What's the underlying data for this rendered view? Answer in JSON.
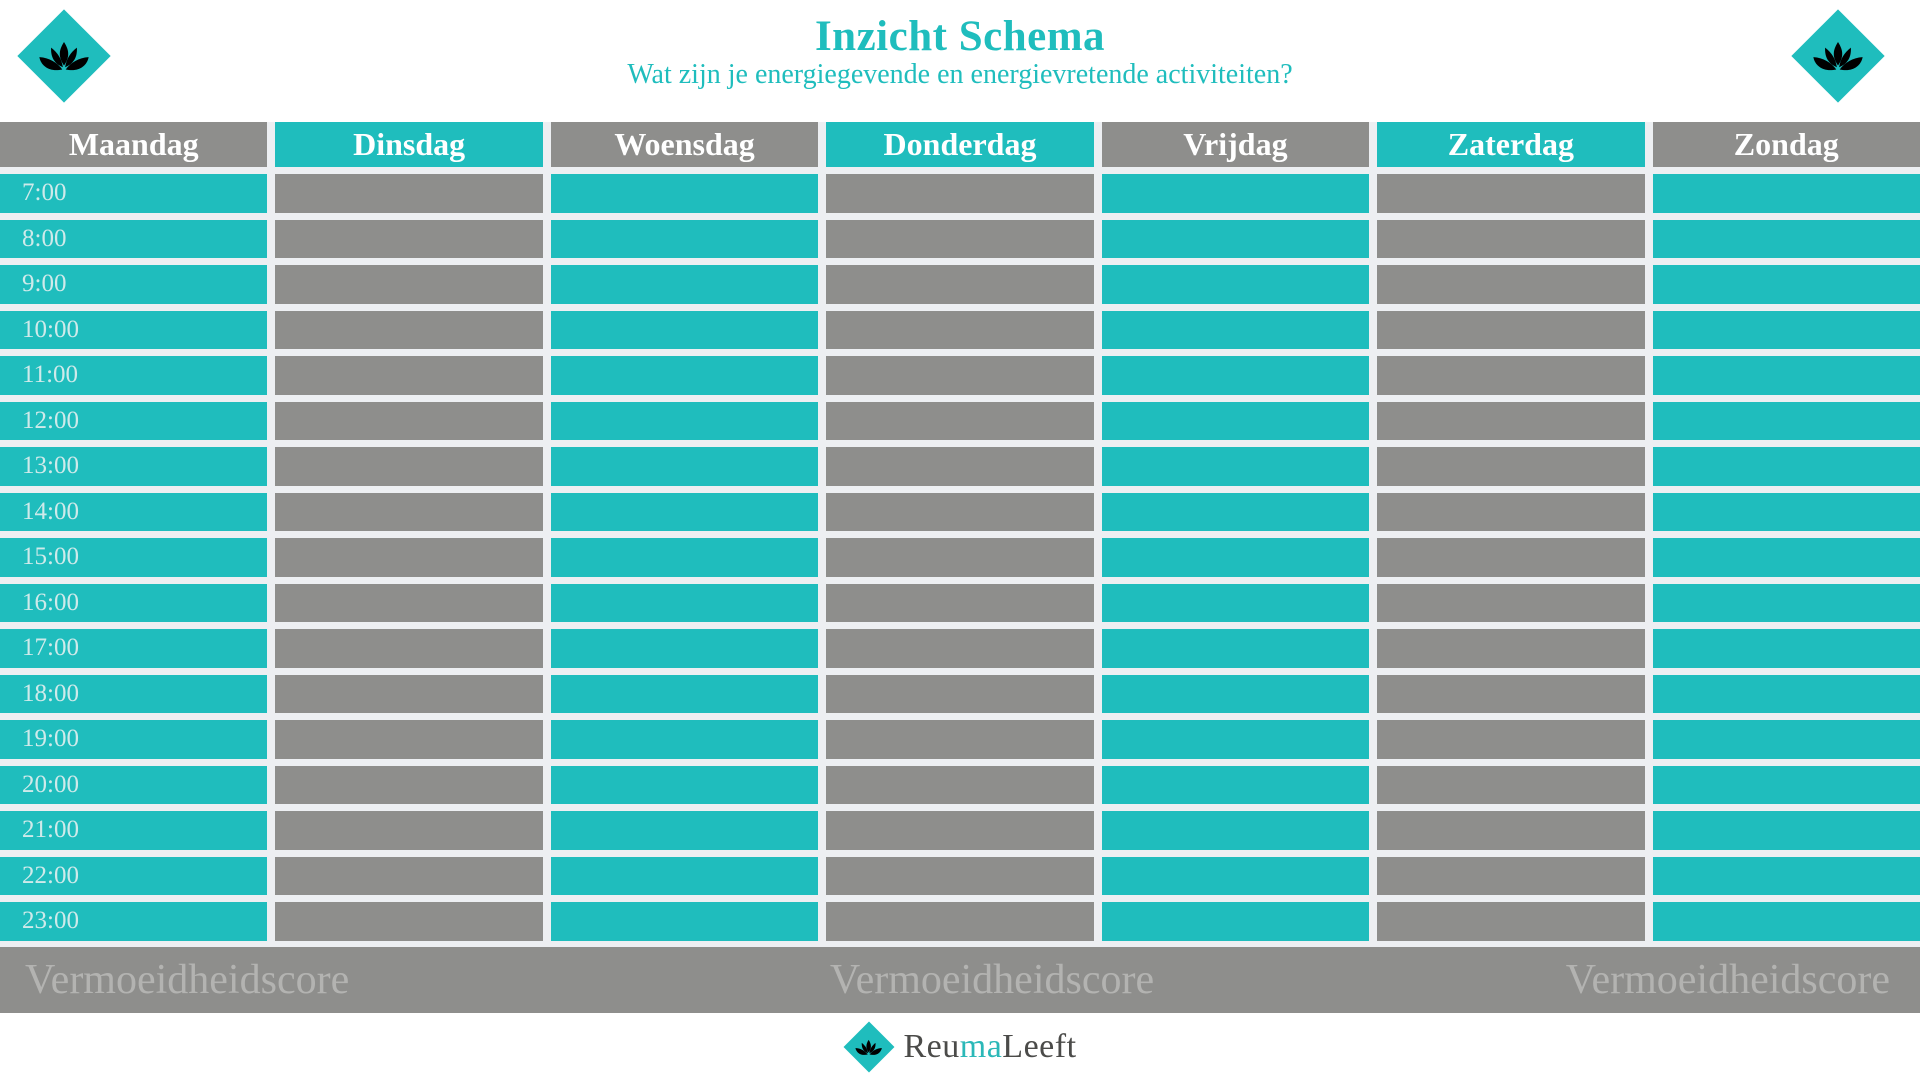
{
  "title": "Inzicht Schema",
  "subtitle": "Wat zijn je energiegevende en energievretende activiteiten?",
  "days": [
    {
      "label": "Maandag",
      "header_variant": "gray",
      "body_variant": "teal"
    },
    {
      "label": "Dinsdag",
      "header_variant": "teal",
      "body_variant": "gray"
    },
    {
      "label": "Woensdag",
      "header_variant": "gray",
      "body_variant": "teal"
    },
    {
      "label": "Donderdag",
      "header_variant": "teal",
      "body_variant": "gray"
    },
    {
      "label": "Vrijdag",
      "header_variant": "gray",
      "body_variant": "teal"
    },
    {
      "label": "Zaterdag",
      "header_variant": "teal",
      "body_variant": "gray"
    },
    {
      "label": "Zondag",
      "header_variant": "gray",
      "body_variant": "teal"
    }
  ],
  "times": [
    "7:00",
    "8:00",
    "9:00",
    "10:00",
    "11:00",
    "12:00",
    "13:00",
    "14:00",
    "15:00",
    "16:00",
    "17:00",
    "18:00",
    "19:00",
    "20:00",
    "21:00",
    "22:00",
    "23:00"
  ],
  "footer_labels": [
    "Vermoeidheidscore",
    "Vermoeidheidscore",
    "Vermoeidheidscore"
  ],
  "brand": {
    "part1": "Reu",
    "part2": "ma",
    "part3": "Leeft"
  },
  "icons": {
    "top_left": "lotus-diamond-icon",
    "top_right": "lotus-diamond-icon",
    "brand_mark": "lotus-diamond-icon"
  },
  "colors": {
    "teal": "#1fbdbd",
    "gray": "#8e8e8c",
    "gap_background": "#edeff2",
    "time_text": "#cfeaea",
    "score_text": "#b3b3b1",
    "brand_dark": "#4b4b49",
    "brand_teal": "#2bb8b8"
  }
}
